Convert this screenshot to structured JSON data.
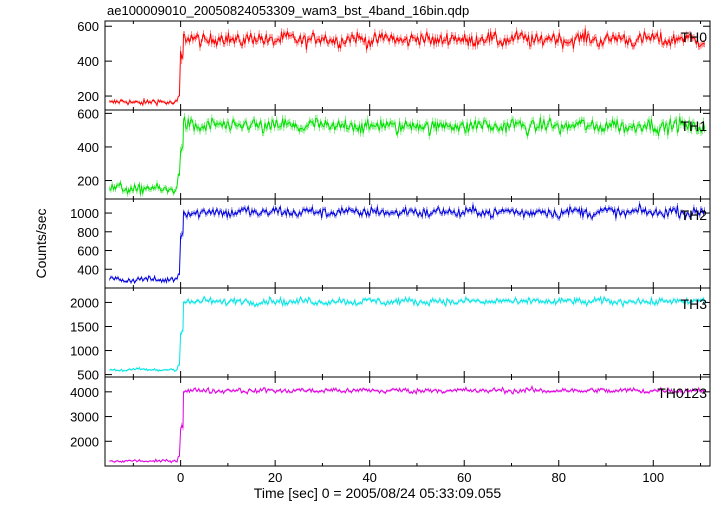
{
  "title": "ae100009010_20050824053309_wam3_bst_4band_16bin.qdp",
  "chart_data": {
    "type": "line",
    "title": "ae100009010_20050824053309_wam3_bst_4band_16bin.qdp",
    "xlabel": "Time [sec] 0 = 2005/08/24 05:33:09.055",
    "ylabel": "Counts/sec",
    "xlim": [
      -16,
      112
    ],
    "x_ticks": [
      0,
      20,
      40,
      60,
      80,
      100
    ],
    "x_tick_labels": [
      "0",
      "20",
      "40",
      "60",
      "80",
      "100"
    ],
    "grid": false,
    "series_step_sec": 0.25,
    "panels": [
      {
        "name": "TH0",
        "color": "#ff0000",
        "ylim": [
          120,
          630
        ],
        "yticks": [
          200,
          400,
          600
        ],
        "segments": [
          {
            "x_start": -15,
            "x_end": -0.5,
            "level": 165,
            "noise": 12
          },
          {
            "x_start": -0.5,
            "x_end": 0.0,
            "level": 200,
            "noise": 5
          },
          {
            "x_start": 0.0,
            "x_end": 0.6,
            "level": 420,
            "noise": 40
          },
          {
            "x_start": 0.6,
            "x_end": 111,
            "level": 525,
            "noise": 28
          }
        ]
      },
      {
        "name": "TH1",
        "color": "#00e000",
        "ylim": [
          90,
          620
        ],
        "yticks": [
          200,
          400,
          600
        ],
        "segments": [
          {
            "x_start": -15,
            "x_end": -0.5,
            "level": 150,
            "noise": 22
          },
          {
            "x_start": -0.5,
            "x_end": 0.0,
            "level": 230,
            "noise": 10
          },
          {
            "x_start": 0.0,
            "x_end": 0.6,
            "level": 410,
            "noise": 40
          },
          {
            "x_start": 0.6,
            "x_end": 111,
            "level": 525,
            "noise": 30
          }
        ]
      },
      {
        "name": "TH2",
        "color": "#0000dd",
        "ylim": [
          200,
          1150
        ],
        "yticks": [
          400,
          600,
          800,
          1000
        ],
        "segments": [
          {
            "x_start": -15,
            "x_end": -0.5,
            "level": 290,
            "noise": 22
          },
          {
            "x_start": -0.5,
            "x_end": 0.0,
            "level": 350,
            "noise": 10
          },
          {
            "x_start": 0.0,
            "x_end": 0.6,
            "level": 750,
            "noise": 60
          },
          {
            "x_start": 0.6,
            "x_end": 111,
            "level": 1010,
            "noise": 38
          }
        ]
      },
      {
        "name": "TH3",
        "color": "#00e5e5",
        "ylim": [
          450,
          2300
        ],
        "yticks": [
          500,
          1000,
          1500,
          2000
        ],
        "segments": [
          {
            "x_start": -15,
            "x_end": -0.5,
            "level": 600,
            "noise": 25
          },
          {
            "x_start": -0.5,
            "x_end": 0.0,
            "level": 700,
            "noise": 15
          },
          {
            "x_start": 0.0,
            "x_end": 0.6,
            "level": 1400,
            "noise": 80
          },
          {
            "x_start": 0.6,
            "x_end": 111,
            "level": 2020,
            "noise": 50
          }
        ]
      },
      {
        "name": "TH0123",
        "color": "#e000e0",
        "ylim": [
          1000,
          4600
        ],
        "yticks": [
          2000,
          3000,
          4000
        ],
        "segments": [
          {
            "x_start": -15,
            "x_end": -0.5,
            "level": 1200,
            "noise": 40
          },
          {
            "x_start": -0.5,
            "x_end": 0.0,
            "level": 1400,
            "noise": 20
          },
          {
            "x_start": 0.0,
            "x_end": 0.6,
            "level": 2700,
            "noise": 150
          },
          {
            "x_start": 0.6,
            "x_end": 111,
            "level": 4050,
            "noise": 70
          }
        ]
      }
    ]
  }
}
